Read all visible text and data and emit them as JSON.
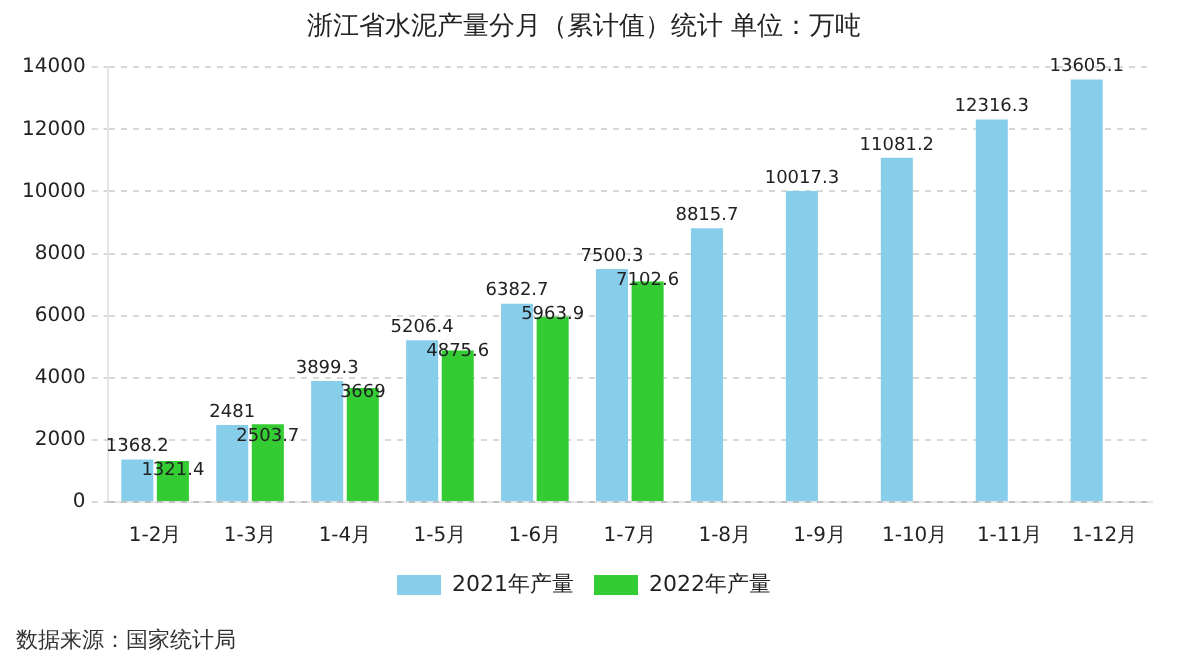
{
  "chart_data": {
    "type": "bar",
    "title": "浙江省水泥产量分月（累计值）统计 单位：万吨",
    "categories": [
      "1-2月",
      "1-3月",
      "1-4月",
      "1-5月",
      "1-6月",
      "1-7月",
      "1-8月",
      "1-9月",
      "1-10月",
      "1-11月",
      "1-12月"
    ],
    "series": [
      {
        "name": "2021年产量",
        "color": "#87ceeb",
        "values": [
          1368.2,
          2481,
          3899.3,
          5206.4,
          6382.7,
          7500.3,
          8815.7,
          10017.3,
          11081.2,
          12316.3,
          13605.1
        ]
      },
      {
        "name": "2022年产量",
        "color": "#33cc33",
        "values": [
          1321.4,
          2503.7,
          3669,
          4875.6,
          5963.9,
          7102.6,
          null,
          null,
          null,
          null,
          null
        ]
      }
    ],
    "ylim": [
      0,
      14000
    ],
    "yticks": [
      0,
      2000,
      4000,
      6000,
      8000,
      10000,
      12000,
      14000
    ],
    "grid": "y",
    "legend": "bottom",
    "data_labels": true,
    "annotations": [
      "数据来源：国家统计局"
    ]
  }
}
